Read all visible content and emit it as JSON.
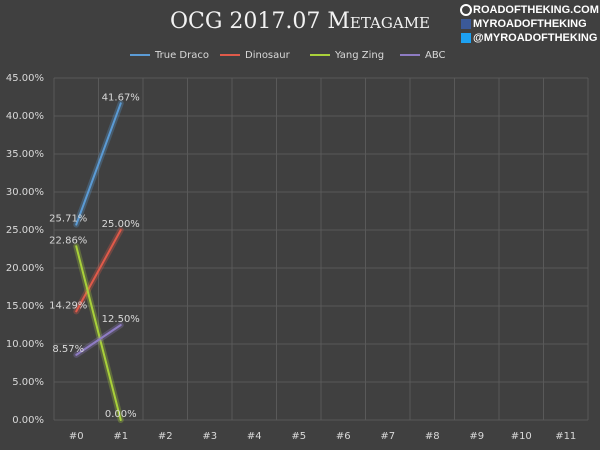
{
  "chart_data": {
    "type": "line",
    "title": "OCG 2017.07 Metagame",
    "watermark": [
      "ROADOFTHEKING.COM",
      "MYROADOFTHEKING",
      "@MYROADOFTHEKING"
    ],
    "categories": [
      "#0",
      "#1",
      "#2",
      "#3",
      "#4",
      "#5",
      "#6",
      "#7",
      "#8",
      "#9",
      "#10",
      "#11"
    ],
    "series": [
      {
        "name": "True Draco",
        "color": "#5b9bd5",
        "values": [
          25.71,
          41.67,
          null,
          null,
          null,
          null,
          null,
          null,
          null,
          null,
          null,
          null
        ],
        "value_labels": [
          "25.71%",
          "41.67%",
          null,
          null,
          null,
          null,
          null,
          null,
          null,
          null,
          null,
          null
        ]
      },
      {
        "name": "Dinosaur",
        "color": "#e05a4a",
        "values": [
          14.29,
          25.0,
          null,
          null,
          null,
          null,
          null,
          null,
          null,
          null,
          null,
          null
        ],
        "value_labels": [
          "14.29%",
          "25.00%",
          null,
          null,
          null,
          null,
          null,
          null,
          null,
          null,
          null,
          null
        ]
      },
      {
        "name": "Yang Zing",
        "color": "#a9d13a",
        "values": [
          22.86,
          0.0,
          null,
          null,
          null,
          null,
          null,
          null,
          null,
          null,
          null,
          null
        ],
        "value_labels": [
          "22.86%",
          "0.00%",
          null,
          null,
          null,
          null,
          null,
          null,
          null,
          null,
          null,
          null
        ]
      },
      {
        "name": "ABC",
        "color": "#8e7cc3",
        "values": [
          8.57,
          12.5,
          null,
          null,
          null,
          null,
          null,
          null,
          null,
          null,
          null,
          null
        ],
        "value_labels": [
          "8.57%",
          "12.50%",
          null,
          null,
          null,
          null,
          null,
          null,
          null,
          null,
          null,
          null
        ]
      }
    ],
    "ylim": [
      0,
      45
    ],
    "yticks": [
      {
        "value": 0,
        "label": "0.00%"
      },
      {
        "value": 5,
        "label": "5.00%"
      },
      {
        "value": 10,
        "label": "10.00%"
      },
      {
        "value": 15,
        "label": "15.00%"
      },
      {
        "value": 20,
        "label": "20.00%"
      },
      {
        "value": 25,
        "label": "25.00%"
      },
      {
        "value": 30,
        "label": "30.00%"
      },
      {
        "value": 35,
        "label": "35.00%"
      },
      {
        "value": 40,
        "label": "40.00%"
      },
      {
        "value": 45,
        "label": "45.00%"
      }
    ],
    "grid": true,
    "legend": "top"
  }
}
